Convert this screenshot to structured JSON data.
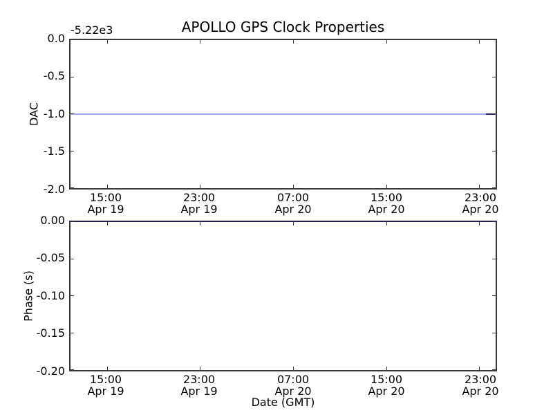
{
  "figure": {
    "title": "APOLLO GPS Clock Properties",
    "background_color": "#ffffff",
    "spine_color": "#383838"
  },
  "top_plot": {
    "ylabel": "DAC",
    "offset_text": "-5.22e3",
    "yticks": [
      "0.0",
      "-0.5",
      "-1.0",
      "-1.5",
      "-2.0"
    ],
    "xticks": [
      {
        "time": "15:00",
        "date": "Apr 19"
      },
      {
        "time": "23:00",
        "date": "Apr 19"
      },
      {
        "time": "07:00",
        "date": "Apr 20"
      },
      {
        "time": "15:00",
        "date": "Apr 20"
      },
      {
        "time": "23:00",
        "date": "Apr 20"
      }
    ],
    "line_color": "#9fa8f2",
    "line_end_color": "#1f2066"
  },
  "bottom_plot": {
    "ylabel": "Phase (s)",
    "xlabel": "Date (GMT)",
    "yticks": [
      "0.00",
      "-0.05",
      "-0.10",
      "-0.15",
      "-0.20"
    ],
    "xticks": [
      {
        "time": "15:00",
        "date": "Apr 19"
      },
      {
        "time": "23:00",
        "date": "Apr 19"
      },
      {
        "time": "07:00",
        "date": "Apr 20"
      },
      {
        "time": "15:00",
        "date": "Apr 20"
      },
      {
        "time": "23:00",
        "date": "Apr 20"
      }
    ],
    "line_color": "#23234f"
  },
  "chart_data": [
    {
      "type": "line",
      "title": "APOLLO GPS Clock Properties",
      "xlabel": "",
      "ylabel": "DAC",
      "y_offset_text": "-5.22e3",
      "ylim": [
        -2.0,
        0.0
      ],
      "ytick_labels": [
        "0.0",
        "-0.5",
        "-1.0",
        "-1.5",
        "-2.0"
      ],
      "xtick_labels": [
        "15:00 Apr 19",
        "23:00 Apr 19",
        "07:00 Apr 20",
        "15:00 Apr 20",
        "23:00 Apr 20"
      ],
      "grid": false,
      "legend": null,
      "series": [
        {
          "name": "DAC",
          "color": "#9fa8f2",
          "x": [
            "15:00 Apr 19",
            "23:00 Apr 19",
            "07:00 Apr 20",
            "15:00 Apr 20",
            "23:00 Apr 20"
          ],
          "y": [
            -1.0,
            -1.0,
            -1.0,
            -1.0,
            -1.0
          ],
          "note": "flat horizontal line at -1.0 relative to offset -5.22e3 (actual DAC ~ -5221); spans full x-range; darker navy segment at extreme right end"
        }
      ]
    },
    {
      "type": "line",
      "title": "",
      "xlabel": "Date (GMT)",
      "ylabel": "Phase (s)",
      "ylim": [
        -0.2,
        0.0
      ],
      "ytick_labels": [
        "0.00",
        "-0.05",
        "-0.10",
        "-0.15",
        "-0.20"
      ],
      "xtick_labels": [
        "15:00 Apr 19",
        "23:00 Apr 19",
        "07:00 Apr 20",
        "15:00 Apr 20",
        "23:00 Apr 20"
      ],
      "grid": false,
      "legend": null,
      "series": [
        {
          "name": "Phase",
          "color": "#23234f",
          "x": [
            "15:00 Apr 19",
            "23:00 Apr 19",
            "07:00 Apr 20",
            "15:00 Apr 20",
            "23:00 Apr 20"
          ],
          "y": [
            0.0,
            0.0,
            0.0,
            0.0,
            0.0
          ],
          "note": "flat line at 0.00 s lying along the top spine of the lower axes"
        }
      ]
    }
  ]
}
